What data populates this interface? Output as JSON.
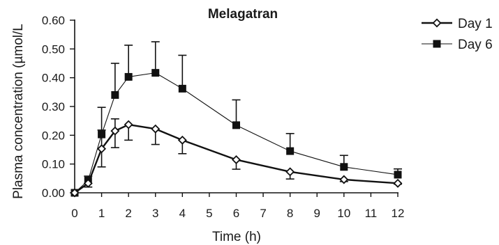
{
  "chart_data": {
    "type": "line",
    "title": "Melagatran",
    "xlabel": "Time (h)",
    "ylabel": "Plasma concentration (µmol/L",
    "xlim": [
      0,
      12
    ],
    "ylim": [
      0,
      0.6
    ],
    "x_ticks": [
      0,
      1,
      2,
      3,
      4,
      5,
      6,
      7,
      8,
      9,
      10,
      11,
      12
    ],
    "x_tick_labels": [
      "0",
      "1",
      "2",
      "3",
      "4",
      "5",
      "6",
      "7",
      "8",
      "9",
      "10",
      "11",
      "12"
    ],
    "y_ticks": [
      0,
      0.1,
      0.2,
      0.3,
      0.4,
      0.5,
      0.6
    ],
    "y_tick_labels": [
      "0.00",
      "0.10",
      "0.20",
      "0.30",
      "0.40",
      "0.50",
      "0.60"
    ],
    "grid": false,
    "legend_position": "top-right",
    "series": [
      {
        "name": "Day 1",
        "marker": "open-diamond",
        "line": "thick",
        "x": [
          0,
          0.5,
          1,
          1.5,
          2,
          3,
          4,
          6,
          8,
          10,
          12
        ],
        "y": [
          0.0,
          0.033,
          0.153,
          0.215,
          0.237,
          0.222,
          0.183,
          0.115,
          0.073,
          0.046,
          0.033
        ],
        "error_upper": [
          0.0,
          0.047,
          0.218,
          0.257,
          0.235,
          0.225,
          0.185,
          0.117,
          0.077,
          0.046,
          0.033
        ],
        "error_lower": [
          0.0,
          0.02,
          0.09,
          0.157,
          0.183,
          0.168,
          0.136,
          0.082,
          0.048,
          0.039,
          0.03
        ],
        "error_direction": "down"
      },
      {
        "name": "Day 6",
        "marker": "filled-square",
        "line": "thin",
        "x": [
          0,
          0.5,
          1,
          1.5,
          2,
          3,
          4,
          6,
          8,
          10,
          12
        ],
        "y": [
          0.0,
          0.043,
          0.203,
          0.34,
          0.403,
          0.417,
          0.362,
          0.235,
          0.145,
          0.09,
          0.063
        ],
        "error_upper": [
          0.0,
          0.058,
          0.297,
          0.45,
          0.513,
          0.525,
          0.478,
          0.323,
          0.206,
          0.13,
          0.083
        ],
        "error_direction": "up"
      }
    ]
  }
}
